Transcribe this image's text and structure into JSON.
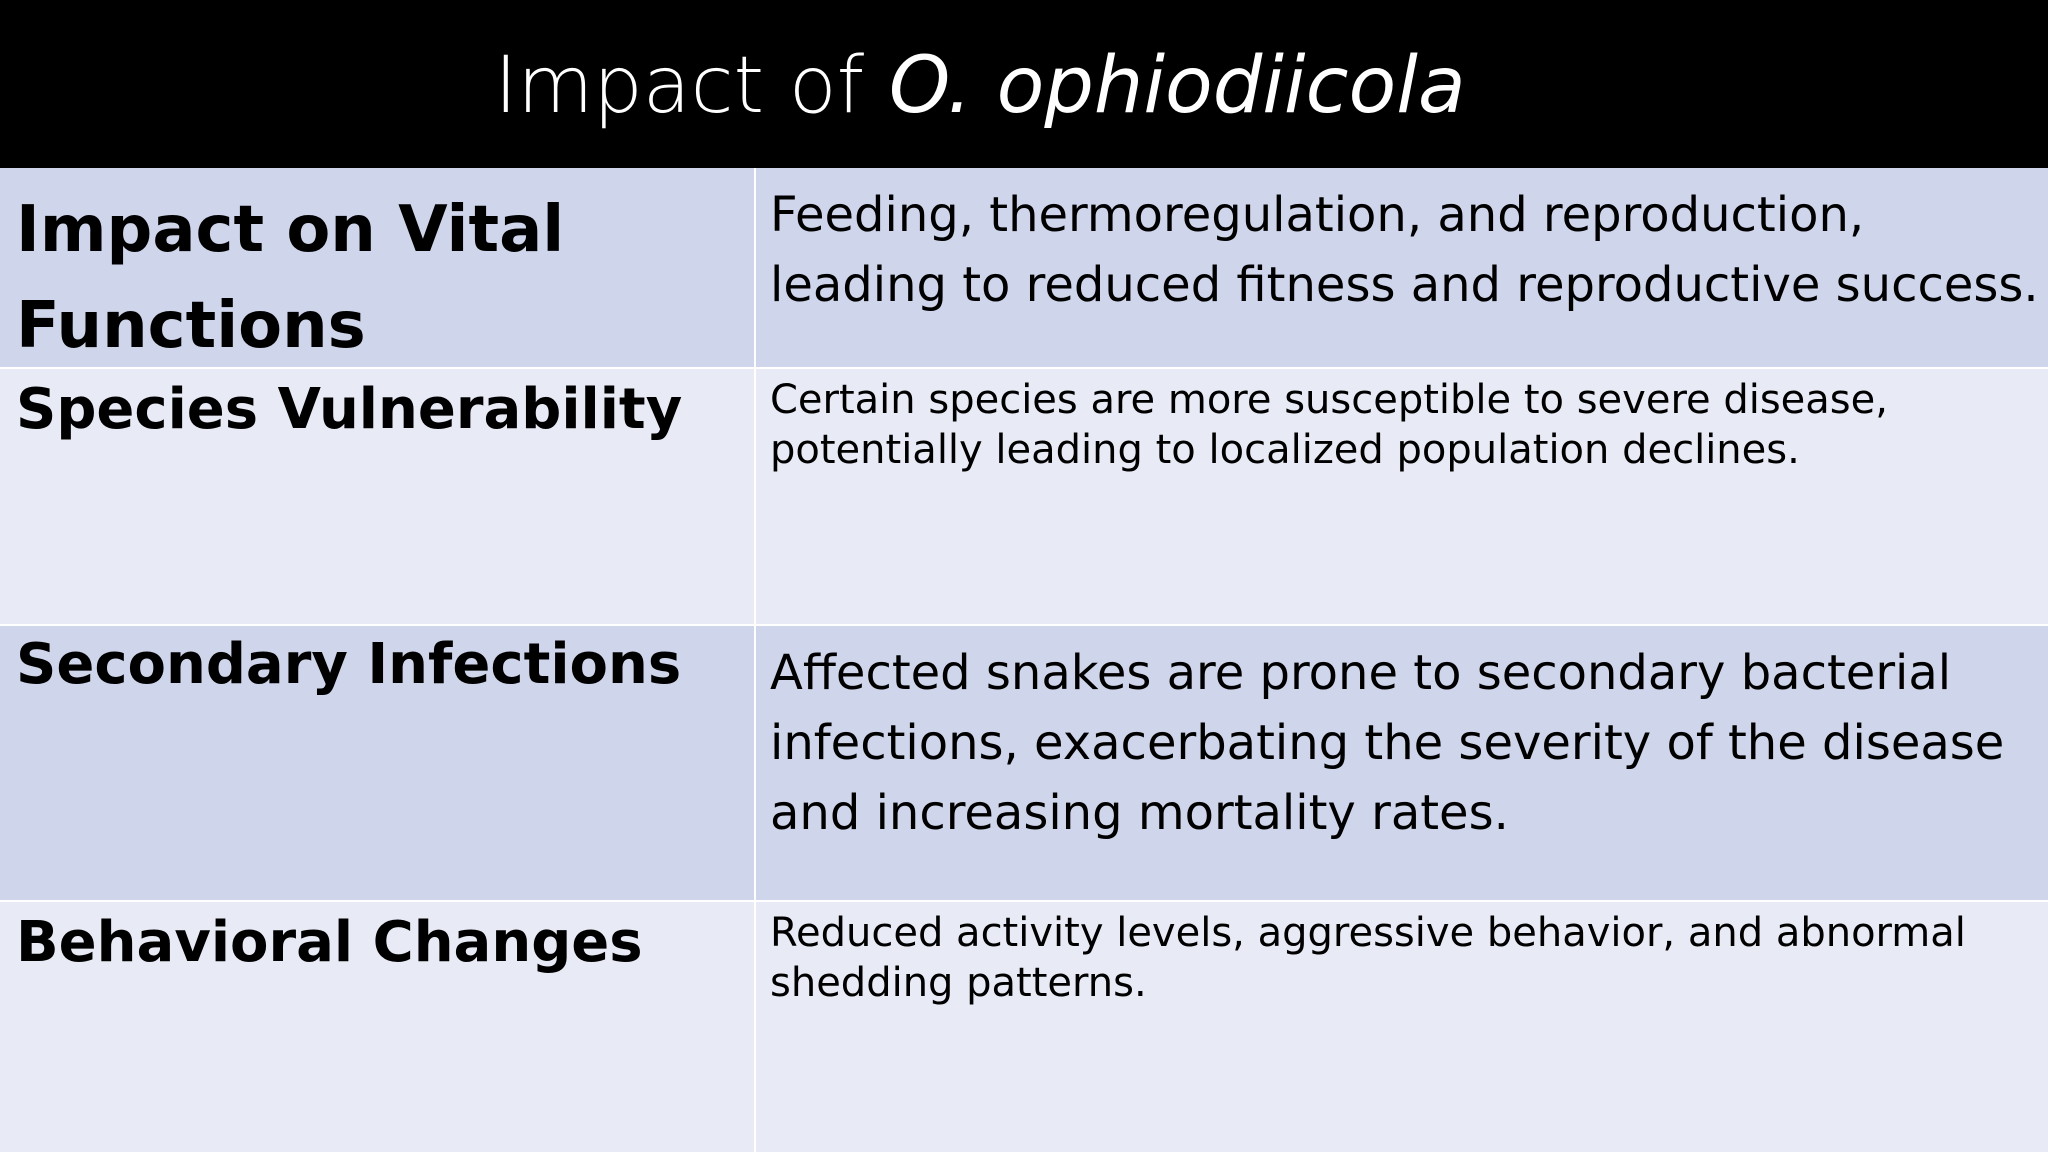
{
  "title": {
    "prefix": "Impact of",
    "italic": "O. ophiodiicola"
  },
  "rows": [
    {
      "label": "Impact on Vital Functions",
      "description": "Feeding, thermoregulation, and reproduction, leading to reduced fitness and reproductive success."
    },
    {
      "label": "Species Vulnerability",
      "description": "Certain species are more susceptible to severe disease, potentially leading to localized population declines."
    },
    {
      "label": "Secondary Infections",
      "description": "Affected snakes are prone to secondary bacterial infections, exacerbating the severity of the disease and increasing mortality rates."
    },
    {
      "label": "Behavioral Changes",
      "description": "Reduced activity levels, aggressive behavior, and abnormal shedding patterns."
    }
  ],
  "colors": {
    "title_bg": "#000000",
    "title_text": "#ffffff",
    "row_dark": "#cfd5ea",
    "row_light": "#e8ebf5"
  }
}
